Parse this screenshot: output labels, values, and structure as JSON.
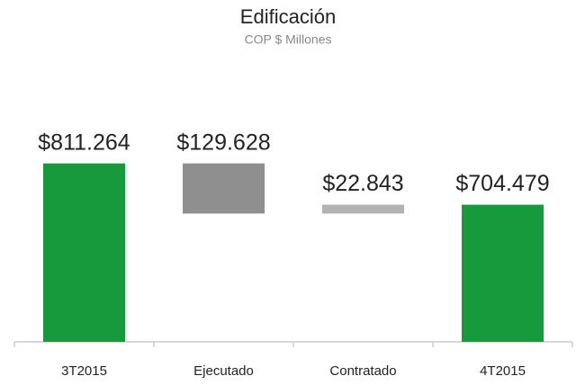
{
  "chart_data": {
    "type": "waterfall",
    "title": "Edificación",
    "subtitle": "COP $ Millones",
    "categories": [
      "3T2015",
      "Ejecutado",
      "Contratado",
      "4T2015"
    ],
    "values": [
      811264,
      -129628,
      22843,
      704479
    ],
    "value_labels": [
      "$811.264",
      "$129.628",
      "$22.843",
      "$704.479"
    ],
    "colors": [
      "#169a3c",
      "#8f8f8f",
      "#b3b3b3",
      "#169a3c"
    ],
    "totals": [
      true,
      false,
      false,
      true
    ],
    "ylim": [
      350000,
      850000
    ]
  }
}
